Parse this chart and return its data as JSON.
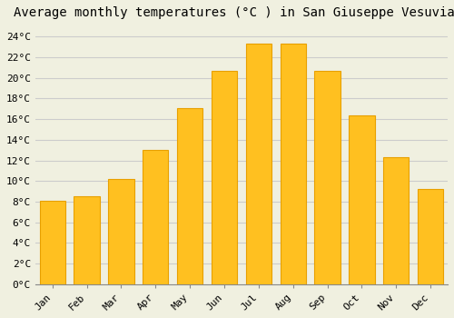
{
  "title": "Average monthly temperatures (°C ) in San Giuseppe Vesuviano",
  "months": [
    "Jan",
    "Feb",
    "Mar",
    "Apr",
    "May",
    "Jun",
    "Jul",
    "Aug",
    "Sep",
    "Oct",
    "Nov",
    "Dec"
  ],
  "temperatures": [
    8.1,
    8.5,
    10.2,
    13.0,
    17.1,
    20.7,
    23.3,
    23.3,
    20.7,
    16.4,
    12.3,
    9.2
  ],
  "bar_color": "#FFC020",
  "bar_edge_color": "#E8A000",
  "background_color": "#F0F0E0",
  "grid_color": "#CCCCCC",
  "ylim": [
    0,
    25
  ],
  "ytick_step": 2,
  "title_fontsize": 10,
  "tick_fontsize": 8,
  "font_family": "monospace",
  "bar_width": 0.75
}
